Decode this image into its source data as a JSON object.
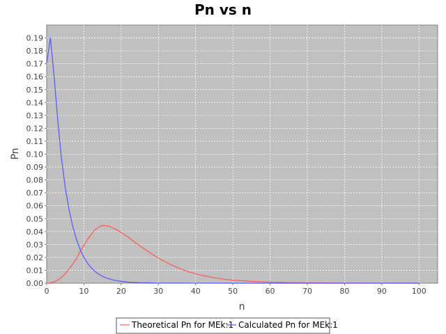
{
  "chart_data": {
    "type": "line",
    "title": "Pn vs n",
    "xlabel": "n",
    "ylabel": "Pn",
    "xlim": [
      0,
      105
    ],
    "ylim": [
      0,
      0.2
    ],
    "x_ticks": [
      "0",
      "10",
      "20",
      "30",
      "40",
      "50",
      "60",
      "70",
      "80",
      "90",
      "100"
    ],
    "x_tick_values": [
      0,
      10,
      20,
      30,
      40,
      50,
      60,
      70,
      80,
      90,
      100
    ],
    "y_ticks": [
      "0.00",
      "0.01",
      "0.02",
      "0.03",
      "0.04",
      "0.05",
      "0.06",
      "0.07",
      "0.08",
      "0.09",
      "0.10",
      "0.11",
      "0.12",
      "0.13",
      "0.14",
      "0.15",
      "0.16",
      "0.17",
      "0.18",
      "0.19"
    ],
    "y_tick_values": [
      0,
      0.01,
      0.02,
      0.03,
      0.04,
      0.05,
      0.06,
      0.07,
      0.08,
      0.09,
      0.1,
      0.11,
      0.12,
      0.13,
      0.14,
      0.15,
      0.16,
      0.17,
      0.18,
      0.19
    ],
    "grid": true,
    "legend_position": "bottom",
    "background": "#c0c0c0",
    "series": [
      {
        "name": "Theoretical Pn for MEk:1",
        "color": "#ff5555",
        "x": [
          0,
          1,
          2,
          3,
          4,
          5,
          6,
          7,
          8,
          9,
          10,
          11,
          12,
          13,
          14,
          15,
          16,
          17,
          18,
          19,
          20,
          22,
          24,
          26,
          28,
          30,
          32,
          34,
          36,
          38,
          40,
          42,
          45,
          48,
          50,
          55,
          60,
          65,
          70,
          75,
          80,
          85,
          90,
          95,
          100
        ],
        "y": [
          0.0,
          0.0003,
          0.001,
          0.0025,
          0.0045,
          0.0075,
          0.011,
          0.015,
          0.019,
          0.0245,
          0.0295,
          0.034,
          0.038,
          0.0415,
          0.0435,
          0.0447,
          0.0445,
          0.0438,
          0.0425,
          0.041,
          0.0392,
          0.0355,
          0.031,
          0.027,
          0.023,
          0.0195,
          0.0163,
          0.0135,
          0.011,
          0.009,
          0.0073,
          0.0059,
          0.0042,
          0.003,
          0.0024,
          0.0014,
          0.0008,
          0.0005,
          0.0003,
          0.0002,
          0.0001,
          7e-05,
          4e-05,
          2e-05,
          1e-05
        ]
      },
      {
        "name": "Calculated Pn for MEk:1",
        "color": "#5555ff",
        "x": [
          0,
          1,
          2,
          3,
          4,
          5,
          6,
          7,
          8,
          9,
          10,
          11,
          12,
          13,
          14,
          15,
          16,
          18,
          20,
          22,
          25,
          30,
          35,
          40,
          50,
          60,
          70,
          80,
          90,
          100
        ],
        "y": [
          0.17,
          0.19,
          0.16,
          0.125,
          0.096,
          0.074,
          0.057,
          0.044,
          0.034,
          0.026,
          0.02,
          0.0153,
          0.0118,
          0.009,
          0.007,
          0.0053,
          0.0041,
          0.0024,
          0.0014,
          0.0008,
          0.0004,
          0.0001,
          5e-05,
          2e-05,
          0.0,
          0.0,
          0.0,
          0.0,
          0.0,
          0.0
        ]
      }
    ]
  }
}
